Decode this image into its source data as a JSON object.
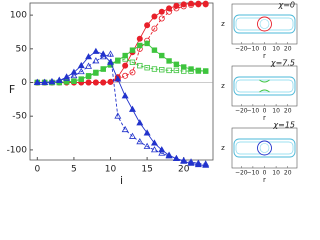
{
  "chart_data": [
    {
      "type": "line",
      "xlabel": "i",
      "ylabel": "F",
      "x": [
        0,
        1,
        2,
        3,
        4,
        5,
        6,
        7,
        8,
        9,
        10,
        11,
        12,
        13,
        14,
        15,
        16,
        17,
        18,
        19,
        20,
        21,
        22,
        23
      ],
      "xlim": [
        -1,
        24
      ],
      "xticks": [
        0,
        5,
        10,
        15,
        20
      ],
      "ylim": [
        -115,
        118
      ],
      "yticks": [
        -100,
        -50,
        0,
        50,
        100
      ],
      "series": [
        {
          "color": "#e8202a",
          "marker": "circle",
          "filled": true,
          "dashed": false,
          "values": [
            0,
            0,
            0,
            0,
            0,
            0,
            0,
            0,
            0,
            0,
            1,
            8,
            25,
            45,
            65,
            85,
            98,
            105,
            110,
            114,
            116,
            117,
            117,
            117
          ]
        },
        {
          "color": "#e8202a",
          "marker": "circle",
          "filled": false,
          "dashed": true,
          "values": [
            0,
            0,
            0,
            0,
            0,
            0,
            0,
            0,
            0,
            0,
            1,
            5,
            10,
            15,
            50,
            62,
            80,
            95,
            105,
            110,
            113,
            115,
            116,
            116
          ]
        },
        {
          "color": "#3ec43e",
          "marker": "square",
          "filled": true,
          "dashed": false,
          "values": [
            0,
            0,
            0,
            0,
            1,
            2,
            5,
            10,
            15,
            20,
            27,
            33,
            40,
            48,
            55,
            58,
            48,
            40,
            32,
            27,
            23,
            20,
            18,
            17
          ]
        },
        {
          "color": "#3ec43e",
          "marker": "square",
          "filled": false,
          "dashed": true,
          "values": [
            0,
            0,
            0,
            0,
            1,
            2,
            5,
            9,
            14,
            20,
            26,
            32,
            35,
            30,
            25,
            22,
            20,
            19,
            18,
            18,
            17,
            17,
            17,
            17
          ]
        },
        {
          "color": "#2233cc",
          "marker": "triangle",
          "filled": true,
          "dashed": false,
          "values": [
            0,
            0,
            1,
            3,
            8,
            15,
            25,
            38,
            46,
            42,
            30,
            5,
            -20,
            -40,
            -60,
            -75,
            -90,
            -100,
            -108,
            -113,
            -117,
            -120,
            -122,
            -123
          ]
        },
        {
          "color": "#2233cc",
          "marker": "triangle",
          "filled": false,
          "dashed": true,
          "values": [
            0,
            0,
            1,
            3,
            6,
            10,
            16,
            24,
            32,
            38,
            42,
            -50,
            -70,
            -80,
            -88,
            -95,
            -100,
            -105,
            -109,
            -113,
            -116,
            -118,
            -120,
            -121
          ]
        }
      ]
    },
    {
      "type": "panel",
      "title": "χ=0",
      "xlabel": "r",
      "ylabel": "z",
      "color": "#e8202a",
      "shape": "circle",
      "xlim": [
        -28,
        28
      ],
      "xticks": [
        {
          "value": -20,
          "label": "−20"
        },
        {
          "value": -10,
          "label": "−10"
        },
        0,
        10,
        20
      ]
    },
    {
      "type": "panel",
      "title": "χ=7.5",
      "xlabel": "r",
      "ylabel": "z",
      "color": "#3ec43e",
      "shape": "neck",
      "xlim": [
        -28,
        28
      ],
      "xticks": [
        {
          "value": -20,
          "label": "−20"
        },
        {
          "value": -10,
          "label": "−10"
        },
        0,
        10,
        20
      ]
    },
    {
      "type": "panel",
      "title": "χ=15",
      "xlabel": "r",
      "ylabel": "z",
      "color": "#2233cc",
      "shape": "circle",
      "xlim": [
        -28,
        28
      ],
      "xticks": [
        {
          "value": -20,
          "label": "−20"
        },
        {
          "value": -10,
          "label": "−10"
        },
        0,
        10,
        20
      ]
    }
  ]
}
